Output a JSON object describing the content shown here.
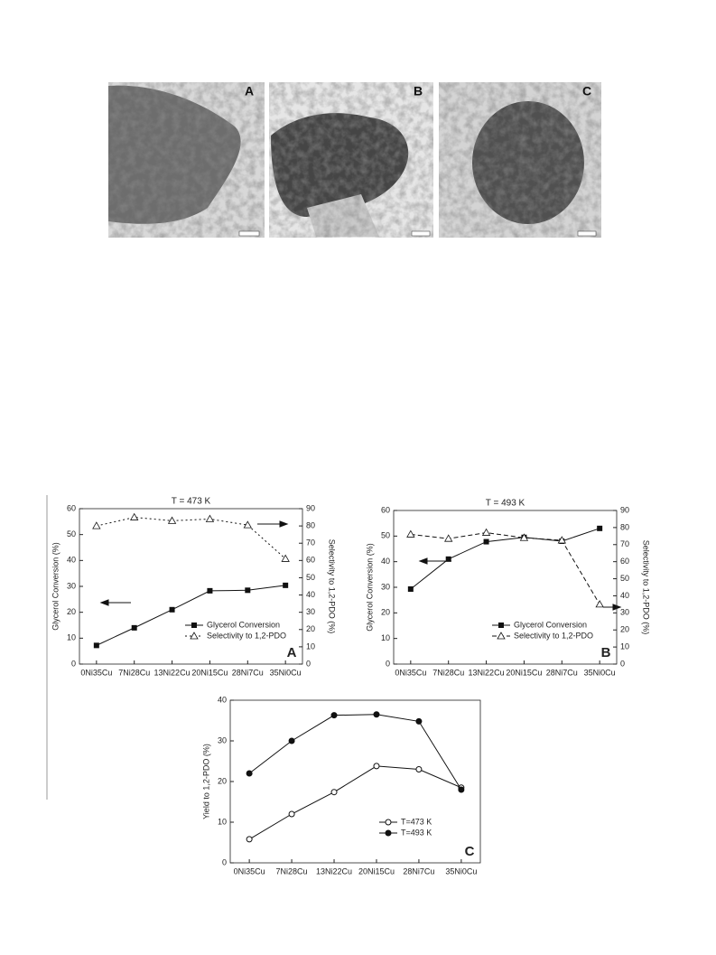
{
  "micrographs": {
    "labels": [
      "A",
      "B",
      "C"
    ]
  },
  "chart_data": [
    {
      "type": "line",
      "title": "T = 473 K",
      "panel_label": "A",
      "categories": [
        "0Ni35Cu",
        "7Ni28Cu",
        "13Ni22Cu",
        "20Ni15Cu",
        "28Ni7Cu",
        "35Ni0Cu"
      ],
      "y_label": "Glycerol Conversion (%)",
      "y2_label": "Selectivity to 1,2-PDO (%)",
      "ylim": [
        0,
        60
      ],
      "yticks": [
        0,
        10,
        20,
        30,
        40,
        50,
        60
      ],
      "y2lim": [
        0,
        90
      ],
      "y2ticks": [
        0,
        10,
        20,
        30,
        40,
        50,
        60,
        70,
        80,
        90
      ],
      "legend": "lower right",
      "series": [
        {
          "name": "Glycerol Conversion",
          "color": "#111111",
          "marker": "square",
          "linestyle": "solid",
          "values": [
            7.2,
            14,
            21,
            28.3,
            28.5,
            30.4
          ]
        },
        {
          "name": "Selectivity to 1,2-PDO",
          "color": "#111111",
          "marker": "triangle-open",
          "linestyle": "dotted",
          "axis": "y2",
          "values": [
            80,
            85,
            83,
            84,
            80.5,
            61
          ]
        }
      ]
    },
    {
      "type": "line",
      "title": "T = 493 K",
      "panel_label": "B",
      "categories": [
        "0Ni35Cu",
        "7Ni28Cu",
        "13Ni22Cu",
        "20Ni15Cu",
        "28Ni7Cu",
        "35Ni0Cu"
      ],
      "y_label": "Glycerol Conversion (%)",
      "y2_label": "Selectivity to 1,2-PDO (%)",
      "ylim": [
        0,
        60
      ],
      "yticks": [
        0,
        10,
        20,
        30,
        40,
        50,
        60
      ],
      "y2lim": [
        0,
        90
      ],
      "y2ticks": [
        0,
        10,
        20,
        30,
        40,
        50,
        60,
        70,
        80,
        90
      ],
      "legend": "lower right",
      "series": [
        {
          "name": "Glycerol Conversion",
          "color": "#111111",
          "marker": "square",
          "linestyle": "solid",
          "values": [
            29.3,
            41,
            47.8,
            49.5,
            48,
            53
          ]
        },
        {
          "name": "Selectivity to 1,2-PDO",
          "color": "#111111",
          "marker": "triangle-open",
          "linestyle": "dashed",
          "axis": "y2",
          "values": [
            76,
            73.5,
            77,
            74,
            72.5,
            35
          ]
        }
      ]
    },
    {
      "type": "line",
      "panel_label": "C",
      "categories": [
        "0Ni35Cu",
        "7Ni28Cu",
        "13Ni22Cu",
        "20Ni15Cu",
        "28Ni7Cu",
        "35Ni0Cu"
      ],
      "y_label": "Yield to 1,2-PDO (%)",
      "ylim": [
        0,
        40
      ],
      "yticks": [
        0,
        10,
        20,
        30,
        40
      ],
      "legend": "lower center",
      "series": [
        {
          "name": "T=473 K",
          "color": "#111111",
          "marker": "circle-open",
          "linestyle": "solid",
          "values": [
            5.8,
            12,
            17.4,
            23.8,
            23,
            18.5
          ]
        },
        {
          "name": "T=493 K",
          "color": "#111111",
          "marker": "circle",
          "linestyle": "solid",
          "values": [
            22,
            30,
            36.3,
            36.5,
            34.8,
            18
          ]
        }
      ]
    }
  ]
}
